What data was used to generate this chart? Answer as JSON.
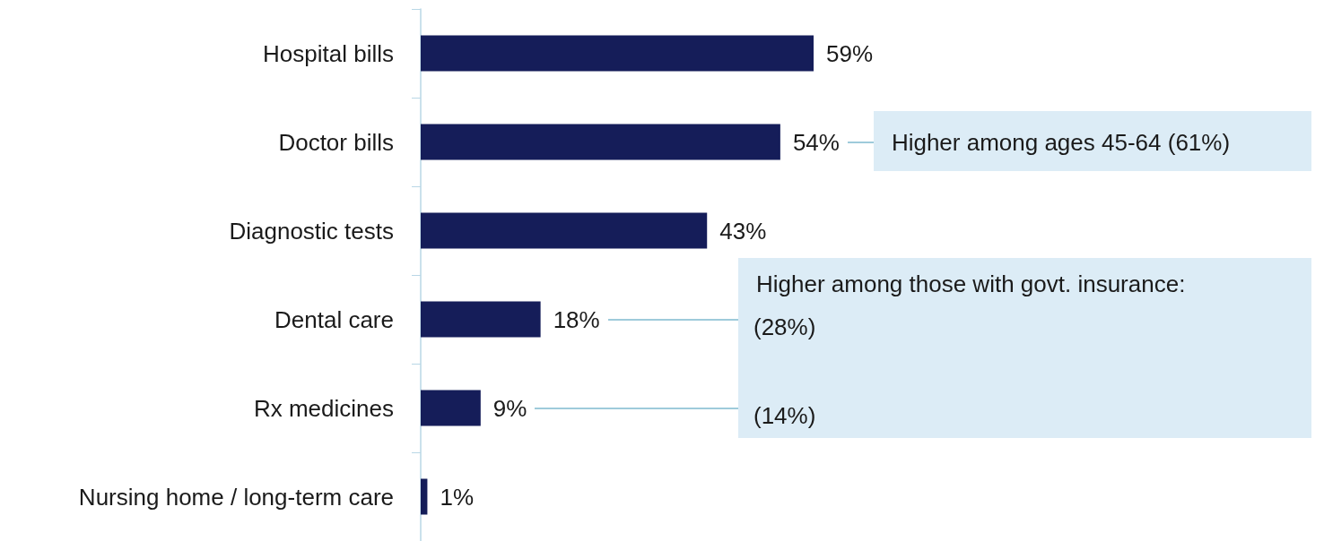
{
  "chart_data": {
    "type": "bar",
    "orientation": "horizontal",
    "categories": [
      "Hospital bills",
      "Doctor bills",
      "Diagnostic tests",
      "Dental care",
      "Rx medicines",
      "Nursing home / long-term care"
    ],
    "values": [
      59,
      54,
      43,
      18,
      9,
      1
    ],
    "value_labels": [
      "59%",
      "54%",
      "43%",
      "18%",
      "9%",
      "1%"
    ],
    "color": "#151d59",
    "tick_labels": "y",
    "grid": false,
    "annotations": [
      "Higher among ages 45-64 (61%)",
      "Higher among those with govt. insurance:",
      "(28%)",
      "(14%)"
    ]
  }
}
